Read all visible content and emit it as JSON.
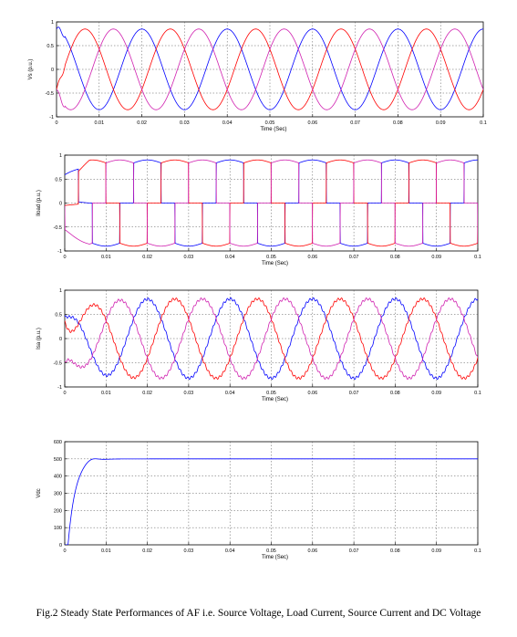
{
  "caption": "Fig.2 Steady State Performances of AF i.e. Source Voltage, Load Current, Source Current and DC Voltage",
  "chart_data": [
    {
      "type": "line",
      "ylabel": "Vs (p.u.)",
      "xlabel": "Time (Sec)",
      "xlim": [
        0,
        0.1
      ],
      "ylim": [
        -1,
        1
      ],
      "xticks": [
        "0",
        "0.01",
        "0.02",
        "0.03",
        "0.04",
        "0.05",
        "0.06",
        "0.07",
        "0.08",
        "0.09",
        "0.1"
      ],
      "yticks": [
        "1",
        "0.5",
        "0",
        "-0.5",
        "-1"
      ],
      "grid": true,
      "waveform": "sine",
      "frequency_hz": 50,
      "amplitude": 0.85,
      "series": [
        {
          "color": "#0000ff",
          "phase_deg": 90
        },
        {
          "color": "#ff0000",
          "phase_deg": -30
        },
        {
          "color": "#d020b0",
          "phase_deg": -150
        }
      ]
    },
    {
      "type": "line",
      "ylabel": "Iload (p.u.)",
      "xlabel": "Time (Sec)",
      "xlim": [
        0,
        0.1
      ],
      "ylim": [
        -1,
        1
      ],
      "xticks": [
        "0",
        "0.01",
        "0.02",
        "0.03",
        "0.04",
        "0.05",
        "0.06",
        "0.07",
        "0.08",
        "0.09",
        "0.1"
      ],
      "yticks": [
        "1",
        "0.5",
        "0",
        "-0.5",
        "-1"
      ],
      "grid": true,
      "waveform": "quasi-square (120° conduction)",
      "frequency_hz": 50,
      "amplitude": 0.9,
      "series": [
        {
          "color": "#0000ff",
          "phase_deg": 90
        },
        {
          "color": "#ff0000",
          "phase_deg": -30
        },
        {
          "color": "#d020b0",
          "phase_deg": -150
        }
      ]
    },
    {
      "type": "line",
      "ylabel": "Isa (p.u.)",
      "xlabel": "Time (Sec)",
      "xlim": [
        0,
        0.1
      ],
      "ylim": [
        -1,
        1
      ],
      "xticks": [
        "0",
        "0.01",
        "0.02",
        "0.03",
        "0.04",
        "0.05",
        "0.06",
        "0.07",
        "0.08",
        "0.09",
        "0.1"
      ],
      "yticks": [
        "1",
        "0.5",
        "0",
        "-0.5",
        "-1"
      ],
      "grid": true,
      "waveform": "sine (with start-up transient)",
      "frequency_hz": 50,
      "amplitude": 0.82,
      "series": [
        {
          "color": "#0000ff",
          "phase_deg": 90
        },
        {
          "color": "#ff0000",
          "phase_deg": -30
        },
        {
          "color": "#d020b0",
          "phase_deg": -150
        }
      ]
    },
    {
      "type": "line",
      "ylabel": "Vdc",
      "xlabel": "Time (Sec)",
      "xlim": [
        0,
        0.1
      ],
      "ylim": [
        0,
        600
      ],
      "xticks": [
        "0",
        "0.01",
        "0.02",
        "0.03",
        "0.04",
        "0.05",
        "0.06",
        "0.07",
        "0.08",
        "0.09",
        "0.1"
      ],
      "yticks": [
        "600",
        "500",
        "400",
        "300",
        "200",
        "100",
        "0"
      ],
      "grid": true,
      "waveform": "step response",
      "steady_value": 500,
      "series": [
        {
          "color": "#0000ff",
          "values_note": "rises from 0 to ~510 by 0.006 s, settles at 500"
        }
      ]
    }
  ]
}
